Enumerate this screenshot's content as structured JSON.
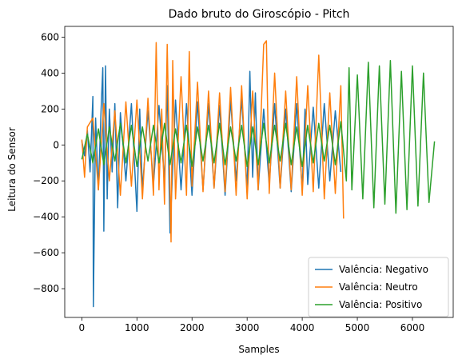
{
  "chart_data": {
    "type": "line",
    "title": "Dado bruto do Giroscópio - Pitch",
    "xlabel": "Samples",
    "ylabel": "Leitura do Sensor",
    "xlim": [
      -310,
      6740
    ],
    "ylim": [
      -960,
      660
    ],
    "xticks": [
      0,
      1000,
      2000,
      3000,
      4000,
      5000,
      6000
    ],
    "yticks": [
      -800,
      -600,
      -400,
      -200,
      0,
      200,
      400,
      600
    ],
    "grid": false,
    "legend": "lower-right",
    "series": [
      {
        "name": "Valência: Negativo",
        "color": "#1f77b4",
        "x": [
          0,
          50,
          100,
          150,
          200,
          210,
          250,
          300,
          350,
          380,
          400,
          430,
          460,
          500,
          550,
          600,
          650,
          700,
          800,
          900,
          1000,
          1050,
          1100,
          1200,
          1300,
          1400,
          1500,
          1550,
          1600,
          1700,
          1800,
          1900,
          2000,
          2100,
          2200,
          2300,
          2400,
          2500,
          2600,
          2700,
          2800,
          2900,
          3000,
          3050,
          3100,
          3150,
          3200,
          3300,
          3400,
          3500,
          3600,
          3700,
          3800,
          3900,
          4000,
          4050,
          4100,
          4200,
          4300,
          4400,
          4500,
          4600,
          4700
        ],
        "y": [
          20,
          -60,
          80,
          -150,
          270,
          -900,
          150,
          -250,
          200,
          430,
          -480,
          440,
          -300,
          200,
          -150,
          230,
          -350,
          180,
          -200,
          230,
          -370,
          200,
          -250,
          190,
          -220,
          220,
          -200,
          330,
          -490,
          250,
          -250,
          230,
          -280,
          240,
          -250,
          230,
          -240,
          220,
          -280,
          250,
          -200,
          260,
          -250,
          410,
          -180,
          290,
          -250,
          200,
          -220,
          230,
          -240,
          200,
          -260,
          230,
          -250,
          200,
          -220,
          210,
          -240,
          230,
          -200,
          190,
          -150
        ]
      },
      {
        "name": "Valência: Neutro",
        "color": "#ff7f0e",
        "x": [
          0,
          50,
          100,
          200,
          300,
          400,
          500,
          600,
          700,
          800,
          900,
          1000,
          1100,
          1200,
          1300,
          1350,
          1400,
          1450,
          1500,
          1550,
          1600,
          1620,
          1650,
          1700,
          1800,
          1900,
          1950,
          2000,
          2100,
          2200,
          2300,
          2400,
          2500,
          2600,
          2700,
          2800,
          2900,
          3000,
          3100,
          3200,
          3300,
          3350,
          3400,
          3500,
          3600,
          3700,
          3800,
          3900,
          4000,
          4100,
          4200,
          4300,
          4400,
          4500,
          4600,
          4700,
          4750
        ],
        "y": [
          30,
          -180,
          100,
          150,
          -250,
          230,
          -200,
          190,
          -280,
          240,
          -230,
          250,
          -300,
          260,
          -280,
          570,
          -250,
          200,
          -330,
          560,
          -250,
          -540,
          470,
          -300,
          380,
          -280,
          520,
          -230,
          350,
          -260,
          300,
          -240,
          290,
          -260,
          320,
          -280,
          330,
          -300,
          300,
          -250,
          560,
          580,
          -270,
          400,
          -240,
          300,
          -250,
          380,
          -280,
          330,
          -260,
          500,
          -300,
          290,
          -270,
          330,
          -410
        ]
      },
      {
        "name": "Valência: Positivo",
        "color": "#2ca02c",
        "x": [
          0,
          100,
          200,
          300,
          400,
          500,
          600,
          700,
          800,
          900,
          1000,
          1100,
          1200,
          1300,
          1400,
          1500,
          1600,
          1700,
          1800,
          1900,
          2000,
          2100,
          2200,
          2300,
          2400,
          2500,
          2600,
          2700,
          2800,
          2900,
          3000,
          3100,
          3200,
          3300,
          3400,
          3500,
          3600,
          3700,
          3800,
          3900,
          4000,
          4100,
          4200,
          4300,
          4400,
          4500,
          4600,
          4700,
          4800,
          4850,
          4900,
          5000,
          5100,
          5200,
          5300,
          5400,
          5500,
          5600,
          5700,
          5800,
          5900,
          6000,
          6100,
          6200,
          6300,
          6400
        ],
        "y": [
          -80,
          60,
          -100,
          90,
          -110,
          100,
          -90,
          120,
          -100,
          110,
          -120,
          100,
          -90,
          110,
          -100,
          120,
          -110,
          90,
          -100,
          110,
          -120,
          100,
          -90,
          110,
          -100,
          120,
          -110,
          100,
          -90,
          110,
          -120,
          100,
          -110,
          120,
          -100,
          110,
          -90,
          120,
          -110,
          100,
          -120,
          110,
          -100,
          120,
          -90,
          110,
          -110,
          130,
          -200,
          430,
          -250,
          390,
          -300,
          460,
          -350,
          440,
          -330,
          470,
          -380,
          410,
          -360,
          440,
          -340,
          400,
          -320,
          20
        ]
      }
    ]
  }
}
